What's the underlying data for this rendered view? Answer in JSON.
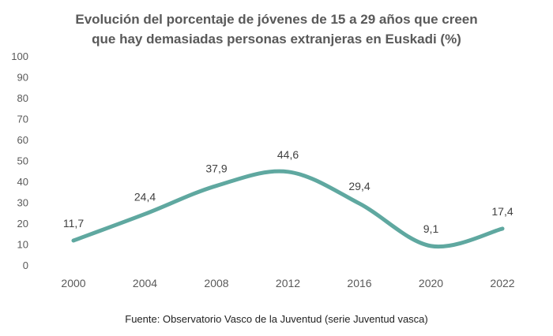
{
  "chart_data": {
    "type": "line",
    "title": [
      "Evolución del porcentaje de jóvenes de 15 a 29 años que creen",
      "que hay demasiadas personas extranjeras en Euskadi (%)"
    ],
    "xlabel": "",
    "ylabel": "",
    "categories": [
      "2000",
      "2004",
      "2008",
      "2012",
      "2016",
      "2020",
      "2022"
    ],
    "values": [
      11.7,
      24.4,
      37.9,
      44.6,
      29.4,
      9.1,
      17.4
    ],
    "data_labels": [
      "11,7",
      "24,4",
      "37,9",
      "44,6",
      "29,4",
      "9,1",
      "17,4"
    ],
    "ylim": [
      0,
      100
    ],
    "yticks": [
      0,
      10,
      20,
      30,
      40,
      50,
      60,
      70,
      80,
      90,
      100
    ],
    "grid": false,
    "smooth": true,
    "line_color": "#5fa8a0",
    "source": "Fuente: Observatorio Vasco de la Juventud (serie Juventud vasca)"
  }
}
